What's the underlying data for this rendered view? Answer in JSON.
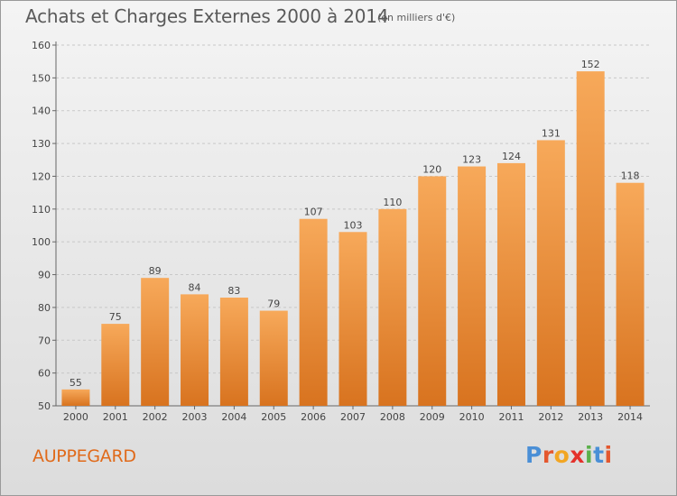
{
  "header": {
    "title": "Achats et Charges Externes 2000 à 2014",
    "subtitle": "(en milliers d'€)"
  },
  "footer": {
    "place": "AUPPEGARD",
    "logo": {
      "letters": [
        "P",
        "r",
        "o",
        "x",
        "i",
        "t",
        "i"
      ],
      "colors": [
        "#4a8fd6",
        "#e4572e",
        "#f2a623",
        "#e4312b",
        "#5bb04a",
        "#4a8fd6",
        "#e4572e"
      ]
    }
  },
  "colors": {
    "bar_top": "#f7a95a",
    "bar_bottom": "#d8731f",
    "text": "#444444"
  },
  "chart_data": {
    "type": "bar",
    "title": "Achats et Charges Externes 2000 à 2014",
    "subtitle": "(en milliers d'€)",
    "xlabel": "",
    "ylabel": "",
    "categories": [
      "2000",
      "2001",
      "2002",
      "2003",
      "2004",
      "2005",
      "2006",
      "2007",
      "2008",
      "2009",
      "2010",
      "2011",
      "2012",
      "2013",
      "2014"
    ],
    "values": [
      55,
      75,
      89,
      84,
      83,
      79,
      107,
      103,
      110,
      120,
      123,
      124,
      131,
      152,
      118
    ],
    "ylim": [
      50,
      160
    ],
    "yticks": [
      50,
      60,
      70,
      80,
      90,
      100,
      110,
      120,
      130,
      140,
      150,
      160
    ],
    "grid": true
  }
}
